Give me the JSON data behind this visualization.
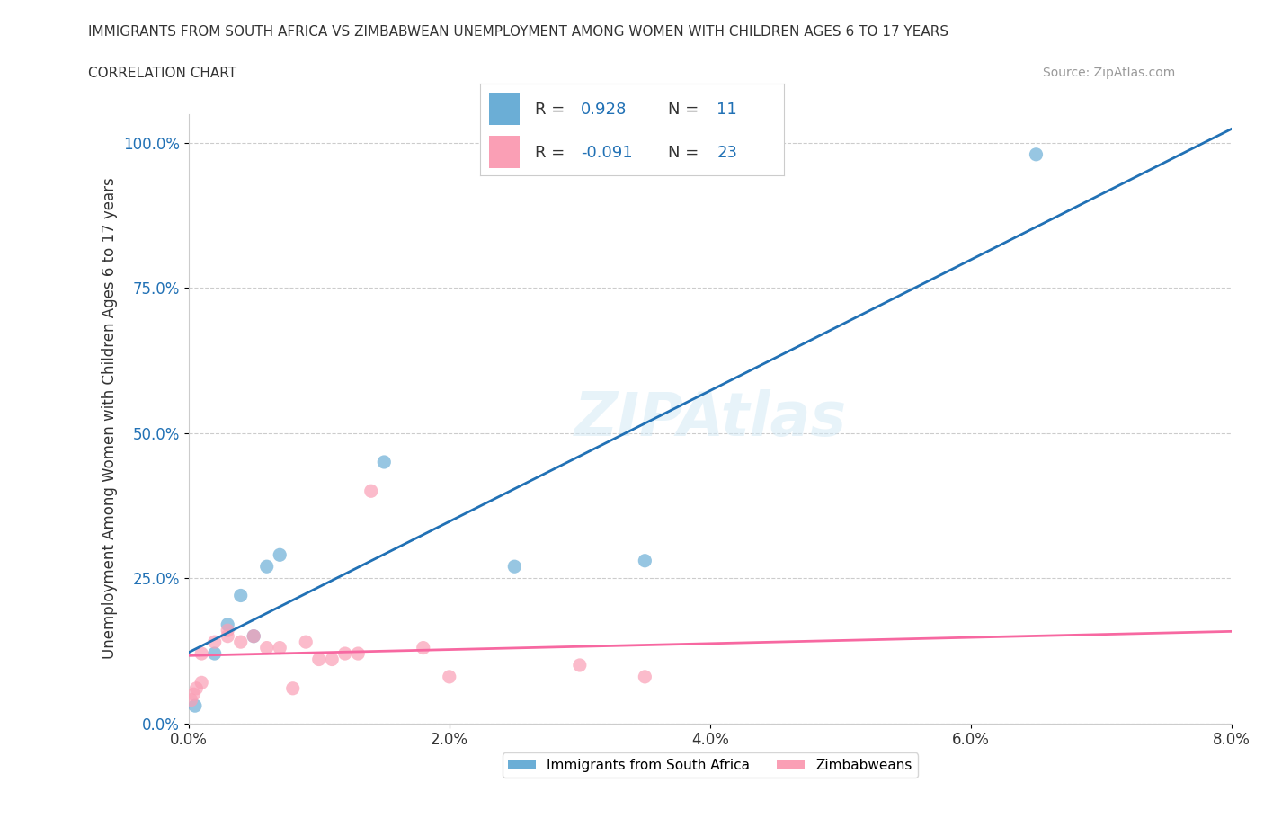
{
  "title": "IMMIGRANTS FROM SOUTH AFRICA VS ZIMBABWEAN UNEMPLOYMENT AMONG WOMEN WITH CHILDREN AGES 6 TO 17 YEARS",
  "subtitle": "CORRELATION CHART",
  "source": "Source: ZipAtlas.com",
  "xlabel": "",
  "ylabel": "Unemployment Among Women with Children Ages 6 to 17 years",
  "x_tick_labels": [
    "0.0%",
    "2.0%",
    "4.0%",
    "6.0%",
    "8.0%"
  ],
  "x_tick_values": [
    0.0,
    0.02,
    0.04,
    0.06,
    0.08
  ],
  "y_tick_labels": [
    "0.0%",
    "25.0%",
    "50.0%",
    "75.0%",
    "100.0%"
  ],
  "y_tick_values": [
    0.0,
    0.25,
    0.5,
    0.75,
    1.0
  ],
  "xlim": [
    0.0,
    0.08
  ],
  "ylim": [
    0.0,
    1.05
  ],
  "blue_color": "#6baed6",
  "pink_color": "#fa9fb5",
  "blue_line_color": "#2171b5",
  "pink_line_color": "#f768a1",
  "watermark": "ZIPAtlas",
  "legend_r1": "R =  0.928",
  "legend_n1": "N =  11",
  "legend_r2": "R = -0.091",
  "legend_n2": "N = 23",
  "blue_points_x": [
    0.0005,
    0.002,
    0.003,
    0.004,
    0.005,
    0.006,
    0.007,
    0.015,
    0.025,
    0.035,
    0.065
  ],
  "blue_points_y": [
    0.03,
    0.12,
    0.17,
    0.22,
    0.15,
    0.27,
    0.29,
    0.45,
    0.27,
    0.28,
    0.98
  ],
  "pink_points_x": [
    0.0002,
    0.0004,
    0.0006,
    0.001,
    0.001,
    0.002,
    0.003,
    0.003,
    0.004,
    0.005,
    0.006,
    0.007,
    0.008,
    0.009,
    0.01,
    0.011,
    0.012,
    0.013,
    0.014,
    0.018,
    0.02,
    0.03,
    0.035
  ],
  "pink_points_y": [
    0.04,
    0.05,
    0.06,
    0.07,
    0.12,
    0.14,
    0.15,
    0.16,
    0.14,
    0.15,
    0.13,
    0.13,
    0.06,
    0.14,
    0.11,
    0.11,
    0.12,
    0.12,
    0.4,
    0.13,
    0.08,
    0.1,
    0.08
  ]
}
